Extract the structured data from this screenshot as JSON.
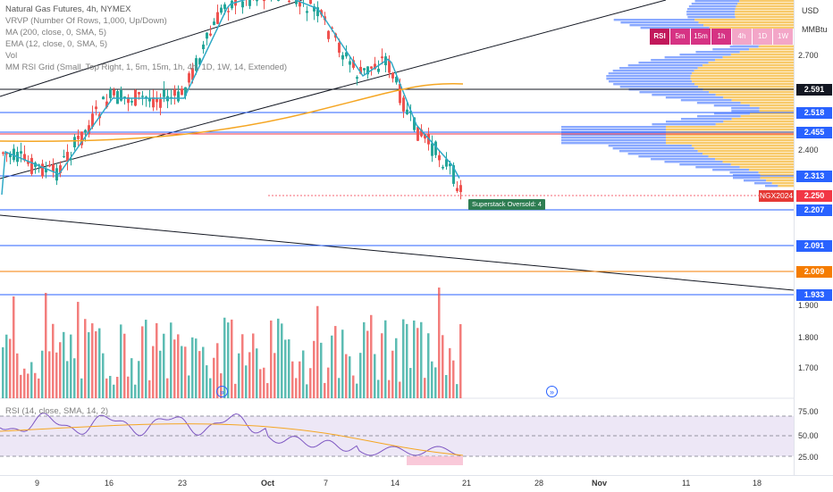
{
  "legend": {
    "title": "Natural Gas Futures, 4h, NYMEX",
    "lines": [
      "VRVP (Number Of Rows, 1,000, Up/Down)",
      "MA (200, close, 0, SMA, 5)",
      "EMA (12, close, 0, SMA, 5)",
      "Vol",
      "MM RSI Grid (Small, Top Right, 1, 5m, 15m, 1h, 4h, 1D, 1W, 14, Extended)"
    ]
  },
  "rsi_legend": "RSI (14, close, SMA, 14, 2)",
  "price_axis": {
    "currency": "USD",
    "unit": "MMBtu",
    "labels": [
      "2.700",
      "2.400",
      "1.900",
      "1.800",
      "1.700"
    ],
    "rsi_labels": [
      "75.00",
      "50.00",
      "25.00"
    ]
  },
  "price_tags": [
    {
      "value": "2.591",
      "color": "#131722"
    },
    {
      "value": "2.518",
      "color": "#2962ff"
    },
    {
      "value": "2.455",
      "color": "#2962ff"
    },
    {
      "value": "2.313",
      "color": "#2962ff"
    },
    {
      "value": "2.250",
      "color": "#f23645"
    },
    {
      "value": "2.207",
      "color": "#2962ff"
    },
    {
      "value": "2.091",
      "color": "#2962ff"
    },
    {
      "value": "2.009",
      "color": "#f57c00"
    },
    {
      "value": "1.933",
      "color": "#2962ff"
    }
  ],
  "symbol_tag": "NGX2024",
  "oversold_label": "Superstack Oversold: 4",
  "mtf_grid": [
    "RSI",
    "5m",
    "15m",
    "1h",
    "4h",
    "1D",
    "1W"
  ],
  "time_axis": [
    "9",
    "16",
    "23",
    "Oct",
    "7",
    "14",
    "21",
    "28",
    "Nov",
    "11",
    "18"
  ],
  "colors": {
    "up": "#26a69a",
    "down": "#ef5350",
    "ema": "#2fa9c6",
    "ma200": "#f5a623",
    "rsi": "#7e57c2",
    "hline": "#2962ff"
  }
}
